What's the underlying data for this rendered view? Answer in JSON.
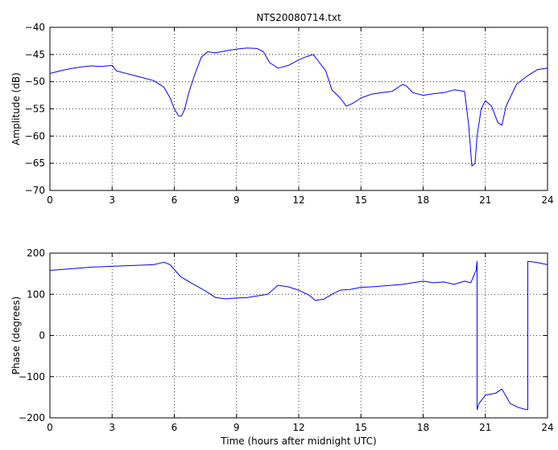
{
  "chart_data": [
    {
      "type": "line",
      "title": "NTS20080714.txt",
      "xlabel": "",
      "ylabel": "Amplitude (dB)",
      "xlim": [
        0,
        24
      ],
      "ylim": [
        -70,
        -40
      ],
      "xticks": [
        "0",
        "3",
        "6",
        "9",
        "12",
        "15",
        "18",
        "21",
        "24"
      ],
      "yticks": [
        "-70",
        "-65",
        "-60",
        "-55",
        "-50",
        "-45",
        "-40"
      ],
      "grid": true,
      "color": "#0000ff",
      "x": [
        0,
        0.5,
        1,
        1.5,
        2,
        2.5,
        3,
        3.2,
        3.5,
        4,
        4.5,
        5,
        5.5,
        5.8,
        6.0,
        6.2,
        6.35,
        6.5,
        6.7,
        7.0,
        7.3,
        7.6,
        8.0,
        8.5,
        9.0,
        9.5,
        10.0,
        10.3,
        10.6,
        11.0,
        11.5,
        12.0,
        12.3,
        12.7,
        13.0,
        13.3,
        13.6,
        14.0,
        14.3,
        14.6,
        15.0,
        15.5,
        16.0,
        16.5,
        17.0,
        17.2,
        17.5,
        18.0,
        18.5,
        19.0,
        19.5,
        20.0,
        20.2,
        20.35,
        20.5,
        20.6,
        20.8,
        21.0,
        21.3,
        21.6,
        21.8,
        22.0,
        22.5,
        23.0,
        23.5,
        24.0
      ],
      "values": [
        -48.5,
        -48,
        -47.6,
        -47.3,
        -47.1,
        -47.2,
        -47.0,
        -48.0,
        -48.3,
        -48.8,
        -49.3,
        -49.8,
        -51.0,
        -53.0,
        -55.0,
        -56.3,
        -56.3,
        -55.0,
        -52.0,
        -48.5,
        -45.5,
        -44.5,
        -44.7,
        -44.3,
        -44.0,
        -43.8,
        -43.9,
        -44.5,
        -46.5,
        -47.5,
        -47.0,
        -46.0,
        -45.5,
        -45.0,
        -46.5,
        -48.0,
        -51.5,
        -53.0,
        -54.5,
        -54.0,
        -53.0,
        -52.3,
        -52.0,
        -51.8,
        -50.5,
        -50.8,
        -52.0,
        -52.5,
        -52.2,
        -52.0,
        -51.5,
        -51.8,
        -58.0,
        -65.5,
        -65.0,
        -60.0,
        -55.0,
        -53.5,
        -54.5,
        -57.5,
        -58.0,
        -54.5,
        -50.5,
        -49.0,
        -47.8,
        -47.5
      ]
    },
    {
      "type": "line",
      "title": "",
      "xlabel": "Time (hours after midnight UTC)",
      "ylabel": "Phase (degrees)",
      "xlim": [
        0,
        24
      ],
      "ylim": [
        -200,
        200
      ],
      "xticks": [
        "0",
        "3",
        "6",
        "9",
        "12",
        "15",
        "18",
        "21",
        "24"
      ],
      "yticks": [
        "-200",
        "-100",
        "0",
        "100",
        "200"
      ],
      "grid": true,
      "color": "#0000ff",
      "x": [
        0,
        1,
        2,
        3,
        4,
        5,
        5.5,
        5.8,
        6.0,
        6.3,
        6.8,
        7.5,
        8.0,
        8.5,
        9.0,
        9.5,
        10.0,
        10.5,
        11.0,
        11.5,
        12.0,
        12.5,
        12.8,
        13.2,
        13.6,
        14.0,
        14.5,
        15.0,
        15.5,
        16.0,
        16.5,
        17.0,
        17.5,
        18.0,
        18.5,
        19.0,
        19.5,
        20.0,
        20.3,
        20.55,
        20.6,
        20.6,
        20.7,
        21.0,
        21.5,
        21.8,
        22.2,
        22.6,
        23.0,
        23.05,
        23.05,
        23.4,
        23.7,
        24.0
      ],
      "values": [
        158,
        162,
        166,
        168,
        170,
        172,
        178,
        172,
        160,
        143,
        128,
        108,
        92,
        89,
        91,
        92,
        96,
        100,
        122,
        118,
        110,
        98,
        85,
        88,
        100,
        110,
        112,
        117,
        118,
        120,
        122,
        124,
        128,
        132,
        128,
        130,
        124,
        132,
        128,
        158,
        180,
        -180,
        -165,
        -145,
        -140,
        -130,
        -165,
        -175,
        -180,
        -180,
        180,
        178,
        175,
        172
      ]
    }
  ]
}
